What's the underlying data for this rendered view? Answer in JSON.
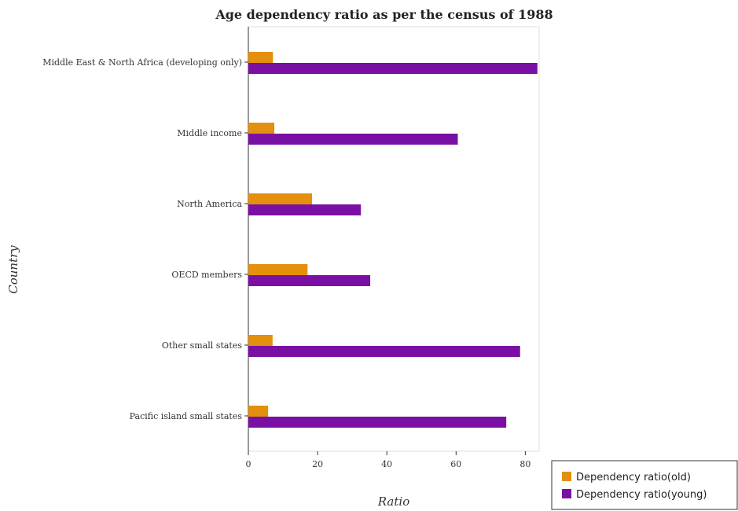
{
  "chart_data": {
    "type": "bar",
    "orientation": "horizontal",
    "title": "Age dependency ratio as per the census of 1988",
    "xlabel": "Ratio",
    "ylabel": "Country",
    "xlim": [
      0,
      84
    ],
    "xticks": [
      0,
      20,
      40,
      60,
      80
    ],
    "grid": false,
    "legend_position": "bottom-right",
    "categories": [
      "Middle East & North Africa (developing only)",
      "Middle income",
      "North America",
      "OECD members",
      "Other small states",
      "Pacific island small states"
    ],
    "series": [
      {
        "name": "Dependency ratio(old)",
        "color": "#e48f0d",
        "values": [
          7.1,
          7.5,
          18.4,
          17.1,
          7.0,
          5.7
        ]
      },
      {
        "name": "Dependency ratio(young)",
        "color": "#7a0fa3",
        "values": [
          83.5,
          60.5,
          32.5,
          35.2,
          78.5,
          74.5
        ]
      }
    ]
  }
}
